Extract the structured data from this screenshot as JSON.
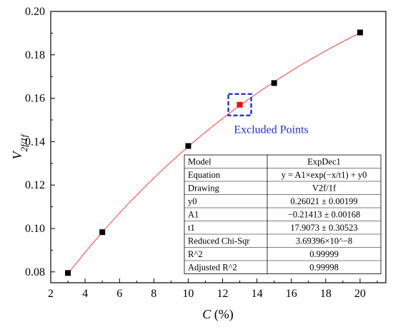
{
  "chart_data": {
    "type": "scatter",
    "title": "",
    "xlabel": {
      "main": "C",
      "unit": " (%)"
    },
    "ylabel": {
      "main": "V",
      "sub": "2f/1f"
    },
    "xlim": [
      2,
      21.5
    ],
    "ylim": [
      0.075,
      0.2
    ],
    "xticks": [
      2,
      4,
      6,
      8,
      10,
      12,
      14,
      16,
      18,
      20
    ],
    "yticks": [
      0.08,
      0.1,
      0.12,
      0.14,
      0.16,
      0.18,
      0.2
    ],
    "ytick_labels": [
      "0.08",
      "0.10",
      "0.12",
      "0.14",
      "0.16",
      "0.18",
      "0.20"
    ],
    "grid": false,
    "points": [
      {
        "x": 3,
        "y": 0.0795,
        "excluded": false
      },
      {
        "x": 5,
        "y": 0.0983,
        "excluded": false
      },
      {
        "x": 10,
        "y": 0.138,
        "excluded": false
      },
      {
        "x": 13,
        "y": 0.157,
        "excluded": true
      },
      {
        "x": 15,
        "y": 0.167,
        "excluded": false
      },
      {
        "x": 20,
        "y": 0.1903,
        "excluded": false
      }
    ],
    "fit": {
      "type": "ExpDec1",
      "y0": 0.26021,
      "A1": -0.21413,
      "t1": 17.9073,
      "x_from": 3,
      "x_to": 20
    },
    "annotation": "Excluded Points",
    "colors": {
      "point": "#000000",
      "excluded_point": "#ff0000",
      "fit_line": "#ff3b3b",
      "annotation": "#1f2fe0"
    },
    "fit_table": [
      [
        "Model",
        "ExpDec1"
      ],
      [
        "Equation",
        "y = A1×exp(−x/t1) + y0"
      ],
      [
        "Drawing",
        "V2f/1f"
      ],
      [
        "y0",
        "0.26021 ± 0.00199"
      ],
      [
        "A1",
        "−0.21413 ± 0.00168"
      ],
      [
        "t1",
        "17.9073 ± 0.30523"
      ],
      [
        "Reduced Chi-Sqr",
        "3.69396×10^−8"
      ],
      [
        "R^2",
        "0.99999"
      ],
      [
        "Adjusted R^2",
        "0.99998"
      ]
    ]
  }
}
